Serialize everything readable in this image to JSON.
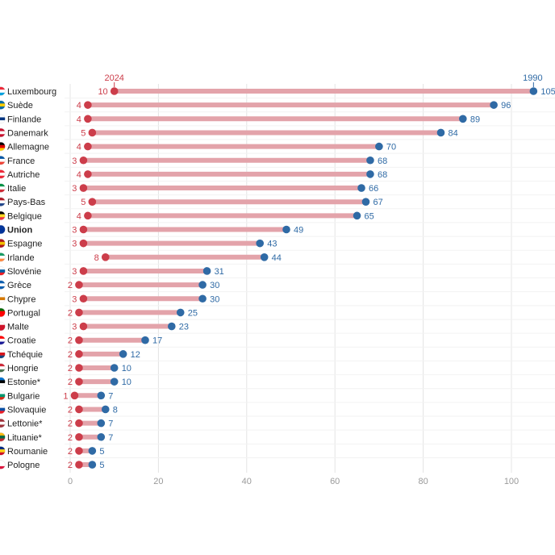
{
  "chart_data": {
    "type": "dumbbell",
    "xlim": [
      0,
      105
    ],
    "xticks": [
      0,
      20,
      40,
      60,
      80,
      100
    ],
    "grid": true,
    "series": [
      {
        "name": "2024",
        "color": "#cc3d4a"
      },
      {
        "name": "1990",
        "color": "#2f6aa5"
      }
    ],
    "rows": [
      {
        "country": "Luxembourg",
        "v2024": 10,
        "v1990": 105,
        "flag": [
          "#ed2939",
          "#ffffff",
          "#00a1de"
        ]
      },
      {
        "country": "Suède",
        "v2024": 4,
        "v1990": 96,
        "flag": [
          "#006aa7",
          "#fecc00",
          "#006aa7"
        ]
      },
      {
        "country": "Finlande",
        "v2024": 4,
        "v1990": 89,
        "flag": [
          "#ffffff",
          "#003580",
          "#ffffff"
        ]
      },
      {
        "country": "Danemark",
        "v2024": 5,
        "v1990": 84,
        "flag": [
          "#c8102e",
          "#ffffff",
          "#c8102e"
        ]
      },
      {
        "country": "Allemagne",
        "v2024": 4,
        "v1990": 70,
        "flag": [
          "#000000",
          "#dd0000",
          "#ffce00"
        ]
      },
      {
        "country": "France",
        "v2024": 3,
        "v1990": 68,
        "flag": [
          "#0055a4",
          "#ffffff",
          "#ef4135"
        ]
      },
      {
        "country": "Autriche",
        "v2024": 4,
        "v1990": 68,
        "flag": [
          "#ed2939",
          "#ffffff",
          "#ed2939"
        ]
      },
      {
        "country": "Italie",
        "v2024": 3,
        "v1990": 66,
        "flag": [
          "#009246",
          "#ffffff",
          "#ce2b37"
        ]
      },
      {
        "country": "Pays-Bas",
        "v2024": 5,
        "v1990": 67,
        "flag": [
          "#ae1c28",
          "#ffffff",
          "#21468b"
        ]
      },
      {
        "country": "Belgique",
        "v2024": 4,
        "v1990": 65,
        "flag": [
          "#000000",
          "#fdda24",
          "#ef3340"
        ]
      },
      {
        "country": "Union",
        "v2024": 3,
        "v1990": 49,
        "bold": true,
        "flag": [
          "#003399",
          "#003399",
          "#003399"
        ]
      },
      {
        "country": "Espagne",
        "v2024": 3,
        "v1990": 43,
        "flag": [
          "#aa151b",
          "#f1bf00",
          "#aa151b"
        ]
      },
      {
        "country": "Irlande",
        "v2024": 8,
        "v1990": 44,
        "flag": [
          "#169b62",
          "#ffffff",
          "#ff883e"
        ]
      },
      {
        "country": "Slovénie",
        "v2024": 3,
        "v1990": 31,
        "flag": [
          "#ffffff",
          "#005da4",
          "#ed1c24"
        ]
      },
      {
        "country": "Grèce",
        "v2024": 2,
        "v1990": 30,
        "flag": [
          "#0d5eaf",
          "#ffffff",
          "#0d5eaf"
        ]
      },
      {
        "country": "Chypre",
        "v2024": 3,
        "v1990": 30,
        "flag": [
          "#ffffff",
          "#d57800",
          "#ffffff"
        ]
      },
      {
        "country": "Portugal",
        "v2024": 2,
        "v1990": 25,
        "flag": [
          "#006600",
          "#ff0000",
          "#ff0000"
        ]
      },
      {
        "country": "Malte",
        "v2024": 3,
        "v1990": 23,
        "flag": [
          "#ffffff",
          "#cf142b",
          "#cf142b"
        ]
      },
      {
        "country": "Croatie",
        "v2024": 2,
        "v1990": 17,
        "flag": [
          "#ff0000",
          "#ffffff",
          "#171796"
        ]
      },
      {
        "country": "Tchéquie",
        "v2024": 2,
        "v1990": 12,
        "flag": [
          "#ffffff",
          "#d7141a",
          "#11457e"
        ]
      },
      {
        "country": "Hongrie",
        "v2024": 2,
        "v1990": 10,
        "flag": [
          "#ce2939",
          "#ffffff",
          "#477050"
        ]
      },
      {
        "country": "Estonie*",
        "v2024": 2,
        "v1990": 10,
        "flag": [
          "#0072ce",
          "#000000",
          "#ffffff"
        ]
      },
      {
        "country": "Bulgarie",
        "v2024": 1,
        "v1990": 7,
        "flag": [
          "#ffffff",
          "#00966e",
          "#d62612"
        ]
      },
      {
        "country": "Slovaquie",
        "v2024": 2,
        "v1990": 8,
        "flag": [
          "#ffffff",
          "#0b4ea2",
          "#ee1c25"
        ]
      },
      {
        "country": "Lettonie*",
        "v2024": 2,
        "v1990": 7,
        "flag": [
          "#9e3039",
          "#ffffff",
          "#9e3039"
        ]
      },
      {
        "country": "Lituanie*",
        "v2024": 2,
        "v1990": 7,
        "flag": [
          "#fdb913",
          "#006a44",
          "#c1272d"
        ]
      },
      {
        "country": "Roumanie",
        "v2024": 2,
        "v1990": 5,
        "flag": [
          "#002b7f",
          "#fcd116",
          "#ce1126"
        ]
      },
      {
        "country": "Pologne",
        "v2024": 2,
        "v1990": 5,
        "flag": [
          "#ffffff",
          "#ffffff",
          "#dc143c"
        ]
      }
    ]
  }
}
